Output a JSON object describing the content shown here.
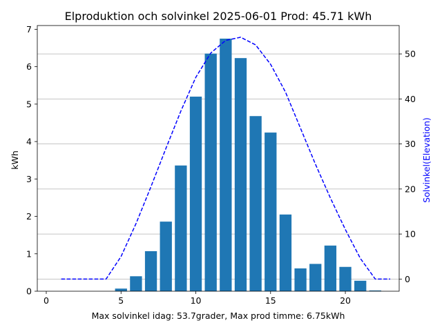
{
  "chart_data": {
    "type": "bar+line",
    "title": "Elproduktion och solvinkel 2025-06-01 Prod: 45.71 kWh",
    "xlabel": "Max solvinkel idag: 53.7grader, Max prod timme: 6.75kWh",
    "ylabel_left": "kWh",
    "ylabel_right": "Solvinkel(Elevation)",
    "xlim": [
      -0.6,
      23.6
    ],
    "ylim_left": [
      0,
      7.1
    ],
    "ylim_right": [
      -2.7,
      56.3
    ],
    "x_ticks": [
      0,
      5,
      10,
      15,
      20
    ],
    "y_ticks_left": [
      0,
      1,
      2,
      3,
      4,
      5,
      6,
      7
    ],
    "y_ticks_right": [
      0,
      10,
      20,
      30,
      40,
      50
    ],
    "grid": "horizontal, right axis",
    "bar_color": "#1f77b4",
    "line_color": "#0000ff",
    "bars": {
      "name": "kWh",
      "x": [
        5,
        6,
        7,
        8,
        9,
        10,
        11,
        12,
        13,
        14,
        15,
        16,
        17,
        18,
        19,
        20,
        21,
        22
      ],
      "values": [
        0.07,
        0.4,
        1.07,
        1.86,
        3.36,
        5.2,
        6.35,
        6.75,
        6.23,
        4.68,
        4.24,
        2.05,
        0.61,
        0.73,
        1.22,
        0.65,
        0.28,
        0.02
      ]
    },
    "line": {
      "name": "Solvinkel(Elevation)",
      "style": "dashed",
      "x": [
        1,
        2,
        3,
        4,
        5,
        6,
        7,
        8,
        9,
        10,
        11,
        12,
        13,
        14,
        15,
        16,
        17,
        18,
        19,
        20,
        21,
        22,
        23
      ],
      "values": [
        0,
        0,
        0,
        0,
        5,
        12.3,
        20.5,
        29,
        37.3,
        44.8,
        50.2,
        53,
        53.7,
        52,
        47.7,
        41.5,
        33.5,
        25.5,
        18,
        11,
        4.6,
        0,
        0
      ]
    }
  }
}
